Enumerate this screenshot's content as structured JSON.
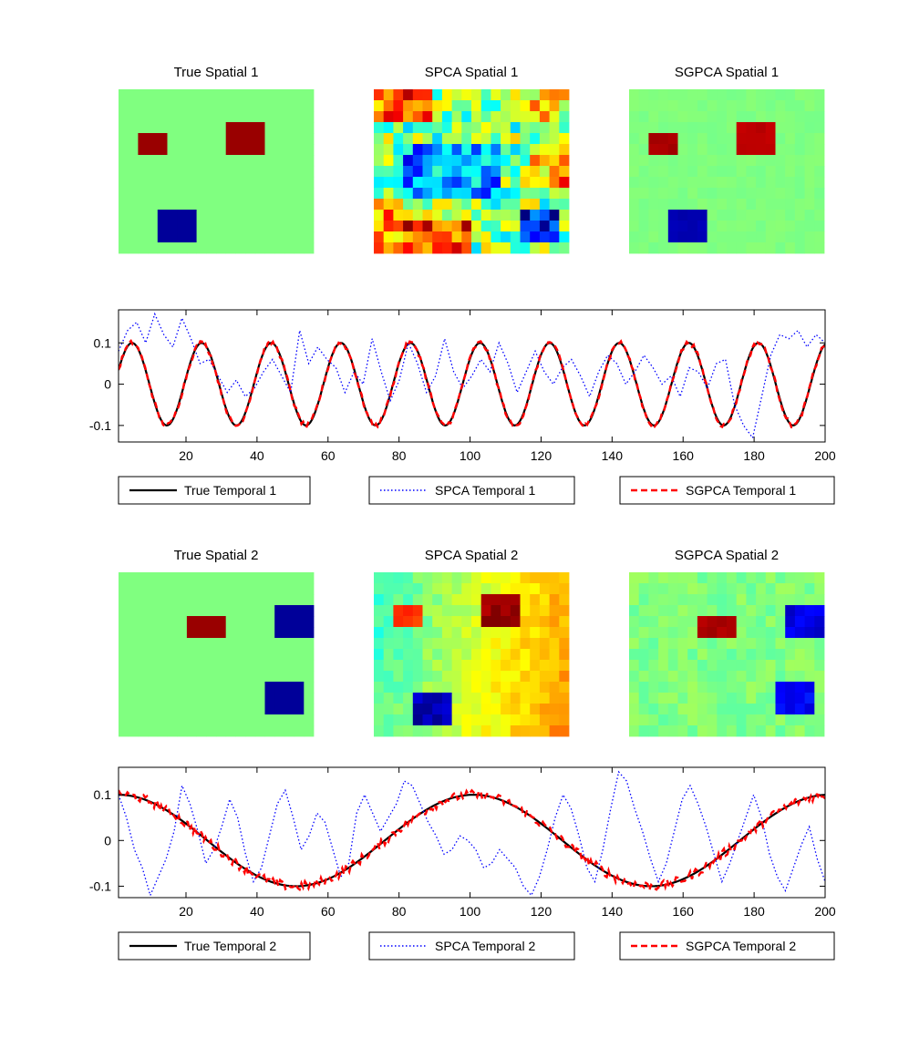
{
  "chart_data": [
    {
      "type": "heatmap",
      "title": "True Spatial 1",
      "grid": [
        20,
        15
      ],
      "colormap": "jet",
      "background": 0,
      "blocks": [
        {
          "col": 2,
          "row": 4,
          "w": 3,
          "h": 2,
          "value": 0.95
        },
        {
          "col": 11,
          "row": 3,
          "w": 4,
          "h": 3,
          "value": 0.95
        },
        {
          "col": 4,
          "row": 11,
          "w": 4,
          "h": 3,
          "value": -0.95
        }
      ],
      "noise": 0
    },
    {
      "type": "heatmap",
      "title": "SPCA Spatial 1",
      "grid": [
        20,
        15
      ],
      "colormap": "jet",
      "background": 0,
      "blocks": [
        {
          "col": 0,
          "row": 0,
          "w": 6,
          "h": 3,
          "value": 0.55
        },
        {
          "col": 13,
          "row": 0,
          "w": 7,
          "h": 3,
          "value": 0.25
        },
        {
          "col": 3,
          "row": 5,
          "w": 10,
          "h": 5,
          "value": -0.45
        },
        {
          "col": 16,
          "row": 6,
          "w": 4,
          "h": 3,
          "value": 0.45
        },
        {
          "col": 3,
          "row": 12,
          "w": 7,
          "h": 3,
          "value": 0.65
        },
        {
          "col": 15,
          "row": 11,
          "w": 4,
          "h": 3,
          "value": -0.75
        },
        {
          "col": 0,
          "row": 10,
          "w": 3,
          "h": 5,
          "value": 0.45
        }
      ],
      "noise": 0.35
    },
    {
      "type": "heatmap",
      "title": "SGPCA Spatial 1",
      "grid": [
        20,
        15
      ],
      "colormap": "jet",
      "background": 0,
      "blocks": [
        {
          "col": 2,
          "row": 4,
          "w": 3,
          "h": 2,
          "value": 0.92
        },
        {
          "col": 11,
          "row": 3,
          "w": 4,
          "h": 3,
          "value": 0.88
        },
        {
          "col": 4,
          "row": 11,
          "w": 4,
          "h": 3,
          "value": -0.9
        }
      ],
      "noise": 0.02
    },
    {
      "type": "heatmap",
      "title": "True Spatial 2",
      "grid": [
        20,
        15
      ],
      "colormap": "jet",
      "background": 0,
      "blocks": [
        {
          "col": 7,
          "row": 4,
          "w": 4,
          "h": 2,
          "value": 0.95
        },
        {
          "col": 16,
          "row": 3,
          "w": 4,
          "h": 3,
          "value": -0.95
        },
        {
          "col": 15,
          "row": 10,
          "w": 4,
          "h": 3,
          "value": -0.95
        }
      ],
      "noise": 0
    },
    {
      "type": "heatmap",
      "title": "SPCA Spatial 2",
      "grid": [
        20,
        15
      ],
      "colormap": "jet",
      "background": "gradient",
      "gradient": {
        "left": -0.15,
        "right": 0.4
      },
      "blocks": [
        {
          "col": 2,
          "row": 3,
          "w": 3,
          "h": 2,
          "value": 0.65
        },
        {
          "col": 11,
          "row": 2,
          "w": 4,
          "h": 3,
          "value": 0.95
        },
        {
          "col": 4,
          "row": 11,
          "w": 4,
          "h": 3,
          "value": -0.9
        }
      ],
      "noise": 0.08
    },
    {
      "type": "heatmap",
      "title": "SGPCA Spatial 2",
      "grid": [
        20,
        15
      ],
      "colormap": "jet",
      "background": 0,
      "blocks": [
        {
          "col": 7,
          "row": 4,
          "w": 4,
          "h": 2,
          "value": 0.9
        },
        {
          "col": 16,
          "row": 3,
          "w": 4,
          "h": 3,
          "value": -0.8
        },
        {
          "col": 15,
          "row": 10,
          "w": 4,
          "h": 3,
          "value": -0.75
        }
      ],
      "noise": 0.07
    },
    {
      "type": "line",
      "xlim": [
        1,
        200
      ],
      "ylim": [
        -0.14,
        0.18
      ],
      "xticks": [
        20,
        40,
        60,
        80,
        100,
        120,
        140,
        160,
        180,
        200
      ],
      "yticks": [
        0.1,
        0,
        -0.1
      ],
      "ytick_labels": [
        "0.1",
        "0",
        "-0.1"
      ],
      "series": [
        {
          "name": "True Temporal 1",
          "color": "#000000",
          "style": "solid",
          "kind": "sin",
          "amplitude": 0.1,
          "period": 19.6,
          "phase_deg": 20
        },
        {
          "name": "SPCA Temporal 1",
          "color": "#0000ff",
          "style": "dotted",
          "kind": "noisy",
          "y": [
            0.08,
            0.13,
            0.15,
            0.1,
            0.17,
            0.12,
            0.09,
            0.16,
            0.11,
            0.05,
            0.06,
            0.02,
            -0.02,
            0.01,
            -0.03,
            -0.01,
            0.03,
            0.06,
            0.02,
            -0.02,
            0.13,
            0.05,
            0.09,
            0.06,
            0.04,
            -0.02,
            0.03,
            0.0,
            0.11,
            0.03,
            -0.04,
            0.01,
            0.1,
            0.05,
            -0.02,
            0.02,
            0.11,
            0.03,
            -0.01,
            0.02,
            0.06,
            0.03,
            0.1,
            0.05,
            -0.02,
            0.03,
            0.08,
            0.03,
            0.0,
            0.04,
            0.06,
            0.02,
            -0.03,
            0.03,
            0.07,
            0.05,
            0.0,
            0.03,
            0.07,
            0.04,
            0.0,
            0.02,
            -0.03,
            0.04,
            0.03,
            -0.01,
            0.05,
            0.06,
            -0.05,
            -0.1,
            -0.13,
            -0.03,
            0.07,
            0.12,
            0.11,
            0.13,
            0.09,
            0.12,
            0.1
          ]
        },
        {
          "name": "SGPCA Temporal 1",
          "color": "#ff0000",
          "style": "dashed",
          "kind": "sin",
          "amplitude": 0.1,
          "period": 19.6,
          "phase_deg": 20,
          "noise": 0.006
        }
      ],
      "legend": [
        "True Temporal 1",
        "SPCA Temporal 1",
        "SGPCA Temporal 1"
      ],
      "legend_location": "below"
    },
    {
      "type": "line",
      "xlim": [
        1,
        200
      ],
      "ylim": [
        -0.125,
        0.16
      ],
      "xticks": [
        20,
        40,
        60,
        80,
        100,
        120,
        140,
        160,
        180,
        200
      ],
      "yticks": [
        0.1,
        0,
        -0.1
      ],
      "ytick_labels": [
        "0.1",
        "0",
        "-0.1"
      ],
      "series": [
        {
          "name": "True Temporal 2",
          "color": "#000000",
          "style": "solid",
          "kind": "cos",
          "amplitude": 0.1,
          "period": 100,
          "phase_deg": 0
        },
        {
          "name": "SPCA Temporal 2",
          "color": "#0000ff",
          "style": "dotted",
          "kind": "noisy",
          "y": [
            0.1,
            0.05,
            -0.02,
            -0.06,
            -0.12,
            -0.08,
            -0.04,
            0.02,
            0.12,
            0.08,
            0.02,
            -0.05,
            -0.02,
            0.03,
            0.09,
            0.05,
            -0.03,
            -0.09,
            -0.06,
            0.01,
            0.08,
            0.11,
            0.05,
            -0.02,
            0.01,
            0.06,
            0.04,
            -0.02,
            -0.08,
            -0.05,
            0.06,
            0.1,
            0.06,
            0.02,
            0.05,
            0.08,
            0.13,
            0.12,
            0.08,
            0.04,
            0.01,
            -0.03,
            -0.02,
            0.01,
            0.0,
            -0.02,
            -0.06,
            -0.05,
            -0.02,
            -0.04,
            -0.06,
            -0.1,
            -0.12,
            -0.08,
            -0.02,
            0.05,
            0.1,
            0.07,
            0.01,
            -0.06,
            -0.09,
            -0.02,
            0.07,
            0.15,
            0.13,
            0.07,
            0.02,
            -0.04,
            -0.09,
            -0.05,
            0.02,
            0.09,
            0.12,
            0.08,
            0.03,
            -0.03,
            -0.09,
            -0.05,
            0.0,
            0.05,
            0.1,
            0.05,
            -0.03,
            -0.08,
            -0.11,
            -0.06,
            -0.01,
            0.03,
            -0.04,
            -0.09
          ]
        },
        {
          "name": "SGPCA Temporal 2",
          "color": "#ff0000",
          "style": "dashed",
          "kind": "cos",
          "amplitude": 0.1,
          "period": 100,
          "phase_deg": 0,
          "noise": 0.01
        }
      ],
      "legend": [
        "True Temporal 2",
        "SPCA Temporal 2",
        "SGPCA Temporal 2"
      ],
      "legend_location": "below"
    }
  ]
}
